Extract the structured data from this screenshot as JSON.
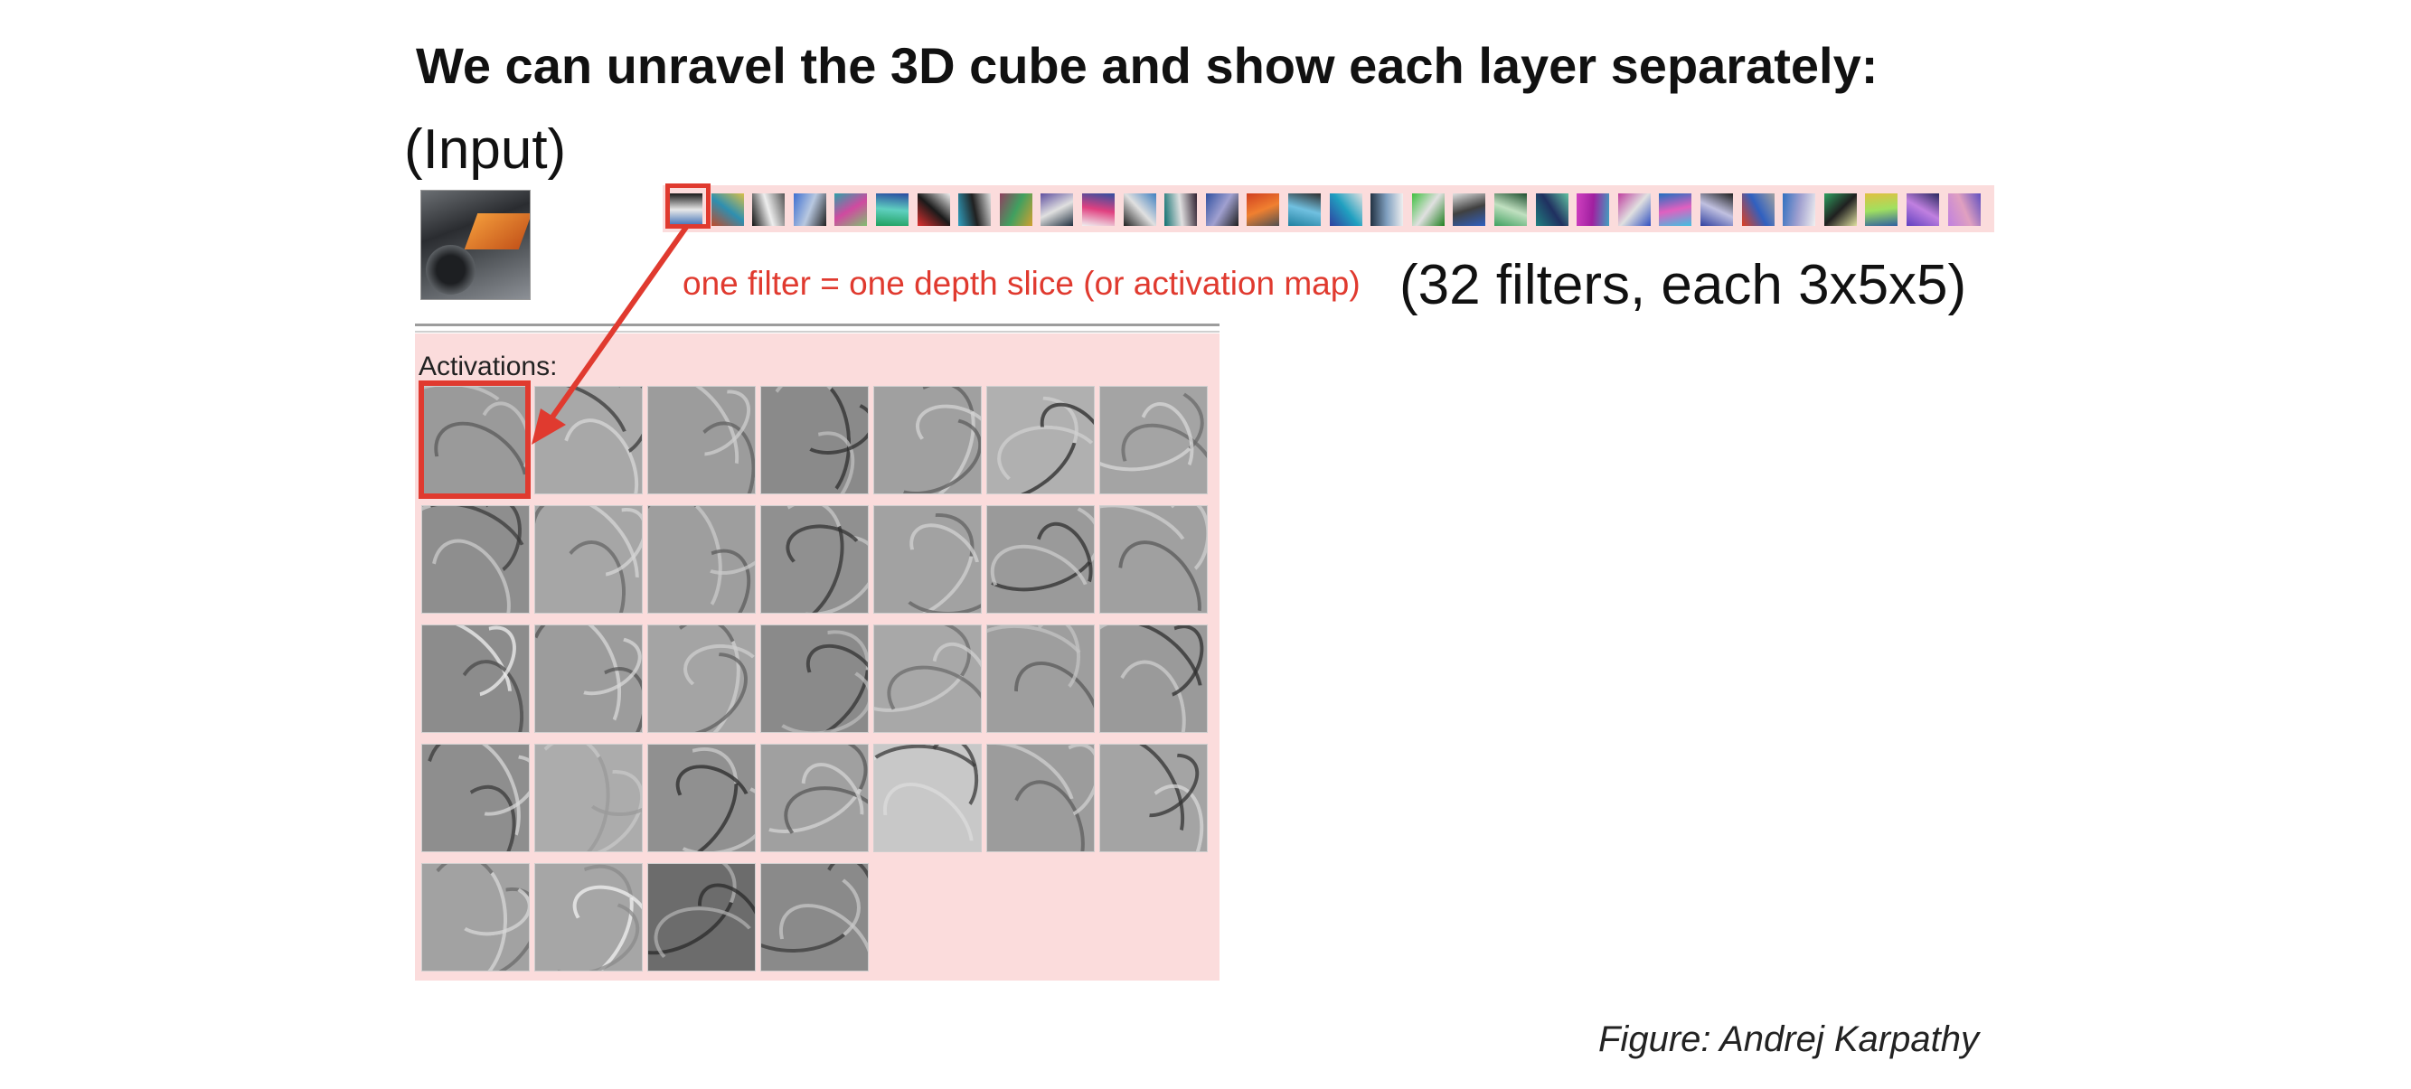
{
  "title": "We can unravel the 3D cube and show each layer separately:",
  "input_label": "(Input)",
  "filter_strip": {
    "count": 32,
    "colors": [
      [
        "#3a6db5",
        "#e8e8e8",
        "#1a1a1a"
      ],
      [
        "#c04a2a",
        "#2e8fb0",
        "#d8c04a"
      ],
      [
        "#111111",
        "#eeeeee",
        "#555555"
      ],
      [
        "#3e6fd0",
        "#b8c8e0",
        "#222222"
      ],
      [
        "#2fa0a8",
        "#d04aa0",
        "#80c070"
      ],
      [
        "#20a060",
        "#5fd0c0",
        "#2a4aa0"
      ],
      [
        "#e03030",
        "#1a1a1a",
        "#f0f0f0"
      ],
      [
        "#30a0c0",
        "#202020",
        "#e0e0e0"
      ],
      [
        "#904060",
        "#40a060",
        "#d0a030"
      ],
      [
        "#6050a0",
        "#e0e0e0",
        "#203040"
      ],
      [
        "#f0f0f0",
        "#e04080",
        "#3050a0"
      ],
      [
        "#202020",
        "#e0e0e0",
        "#4080c0"
      ],
      [
        "#107070",
        "#e0e0e0",
        "#302030"
      ],
      [
        "#3050a0",
        "#a0a0d0",
        "#202020"
      ],
      [
        "#d04020",
        "#f08030",
        "#505050"
      ],
      [
        "#2080a0",
        "#70c0e0",
        "#303030"
      ],
      [
        "#3040a0",
        "#20a0c0",
        "#e0e0e0"
      ],
      [
        "#203040",
        "#80a0c0",
        "#f0f0f0"
      ],
      [
        "#40c040",
        "#e0e0e0",
        "#208020"
      ],
      [
        "#e0e0e0",
        "#404040",
        "#3060c0"
      ],
      [
        "#40a060",
        "#c0e0c0",
        "#205030"
      ],
      [
        "#208080",
        "#203060",
        "#60c0a0"
      ],
      [
        "#d040c0",
        "#a020a0",
        "#40a0c0"
      ],
      [
        "#c040a0",
        "#e0e0e0",
        "#3050c0"
      ],
      [
        "#2070c0",
        "#e060c0",
        "#40c0e0"
      ],
      [
        "#3040a0",
        "#c0c0e0",
        "#202020"
      ],
      [
        "#e04020",
        "#3060c0",
        "#a0a0a0"
      ],
      [
        "#3070c0",
        "#a0a0d0",
        "#f0f0f0"
      ],
      [
        "#30a060",
        "#202020",
        "#e0e0a0"
      ],
      [
        "#e0c040",
        "#a0e060",
        "#3060a0"
      ],
      [
        "#6040c0",
        "#c080e0",
        "#2a2a60"
      ],
      [
        "#c080e0",
        "#e0a0c0",
        "#6050c0"
      ]
    ]
  },
  "caption_red": "one filter = one depth slice (or activation map)",
  "filters_note": "(32 filters, each 3x5x5)",
  "activations_label": "Activations:",
  "activation_maps": {
    "count": 32,
    "columns": 7,
    "tones": [
      [
        "#9a9a9a",
        "#c8c8c8",
        "#5a5a5a"
      ],
      [
        "#a8a8a8",
        "#3a3a3a",
        "#d8d8d8"
      ],
      [
        "#9c9c9c",
        "#cfcfcf",
        "#606060"
      ],
      [
        "#8a8a8a",
        "#2f2f2f",
        "#c0c0c0"
      ],
      [
        "#a0a0a0",
        "#d4d4d4",
        "#5e5e5e"
      ],
      [
        "#b0b0b0",
        "#2a2a2a",
        "#d0d0d0"
      ],
      [
        "#a4a4a4",
        "#d8d8d8",
        "#6a6a6a"
      ],
      [
        "#8e8e8e",
        "#3a3a3a",
        "#cccccc"
      ],
      [
        "#a6a6a6",
        "#d6d6d6",
        "#666666"
      ],
      [
        "#9e9e9e",
        "#cacaca",
        "#5c5c5c"
      ],
      [
        "#909090",
        "#333333",
        "#c8c8c8"
      ],
      [
        "#a2a2a2",
        "#d2d2d2",
        "#626262"
      ],
      [
        "#9a9a9a",
        "#2e2e2e",
        "#cccccc"
      ],
      [
        "#a0a0a0",
        "#d0d0d0",
        "#5a5a5a"
      ],
      [
        "#8c8c8c",
        "#f0f0f0",
        "#4a4a4a"
      ],
      [
        "#9c9c9c",
        "#d8d8d8",
        "#555555"
      ],
      [
        "#a4a4a4",
        "#cfcfcf",
        "#606060"
      ],
      [
        "#8a8a8a",
        "#333333",
        "#bcbcbc"
      ],
      [
        "#a8a8a8",
        "#d0d0d0",
        "#6c6c6c"
      ],
      [
        "#9e9e9e",
        "#c4c4c4",
        "#5a5a5a"
      ],
      [
        "#9a9a9a",
        "#2f2f2f",
        "#cfcfcf"
      ],
      [
        "#8e8e8e",
        "#d8d8d8",
        "#3a3a3a"
      ],
      [
        "#acacac",
        "#9a9a9a",
        "#c8c8c8"
      ],
      [
        "#909090",
        "#2a2a2a",
        "#cccccc"
      ],
      [
        "#a0a0a0",
        "#d4d4d4",
        "#585858"
      ],
      [
        "#c8c8c8",
        "#3a3a3a",
        "#dcdcdc"
      ],
      [
        "#9c9c9c",
        "#d0d0d0",
        "#5e5e5e"
      ],
      [
        "#a4a4a4",
        "#333333",
        "#d8d8d8"
      ],
      [
        "#a2a2a2",
        "#d8d8d8",
        "#6a6a6a"
      ],
      [
        "#a6a6a6",
        "#f2f2f2",
        "#8a8a8a"
      ],
      [
        "#6c6c6c",
        "#2a2a2a",
        "#b0b0b0"
      ],
      [
        "#8a8a8a",
        "#3a3a3a",
        "#c8c8c8"
      ]
    ]
  },
  "accent_color": "#e03a2f",
  "credit": "Figure: Andrej Karpathy"
}
